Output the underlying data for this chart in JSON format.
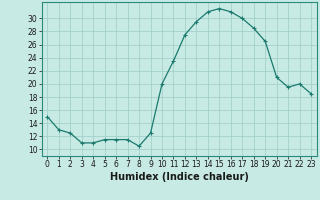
{
  "x": [
    0,
    1,
    2,
    3,
    4,
    5,
    6,
    7,
    8,
    9,
    10,
    11,
    12,
    13,
    14,
    15,
    16,
    17,
    18,
    19,
    20,
    21,
    22,
    23
  ],
  "y": [
    15,
    13,
    12.5,
    11,
    11,
    11.5,
    11.5,
    11.5,
    10.5,
    12.5,
    20,
    23.5,
    27.5,
    29.5,
    31,
    31.5,
    31,
    30,
    28.5,
    26.5,
    21,
    19.5,
    20,
    18.5
  ],
  "line_color": "#1a7a6e",
  "marker": "+",
  "marker_size": 3,
  "marker_linewidth": 0.8,
  "background_color": "#c8eae4",
  "grid_color": "#9dcdc6",
  "xlabel": "Humidex (Indice chaleur)",
  "xlabel_fontsize": 7,
  "ylabel_ticks": [
    10,
    12,
    14,
    16,
    18,
    20,
    22,
    24,
    26,
    28,
    30
  ],
  "ylim": [
    9.0,
    32.5
  ],
  "xlim": [
    -0.5,
    23.5
  ],
  "tick_fontsize": 5.5,
  "line_width": 0.9
}
